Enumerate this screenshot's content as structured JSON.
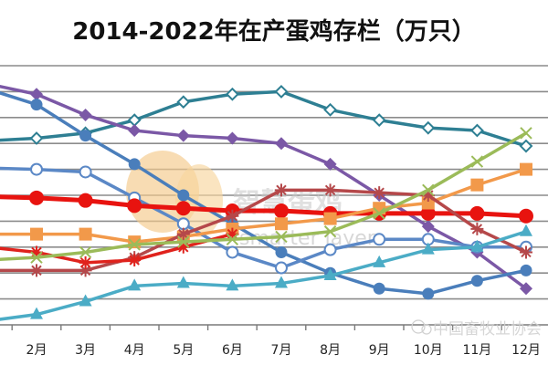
{
  "title": "2014-2022年在产蛋鸡存栏（万只）",
  "watermarks": {
    "brand_cn": "智慧蛋鸡",
    "brand_en": "smarter layer",
    "source": "中国畜牧业协会"
  },
  "chart_data": {
    "type": "line",
    "title": "2014-2022年在产蛋鸡存栏（万只）",
    "xlabel": "",
    "ylabel": "",
    "categories": [
      "2月",
      "3月",
      "4月",
      "5月",
      "6月",
      "7月",
      "8月",
      "9月",
      "10月",
      "11月",
      "12月"
    ],
    "y_units_note": "No y-axis tick labels visible; values are relative heights in gridline units (0 = x-axis, each gridline = 1)",
    "ylim": [
      0,
      10
    ],
    "grid": true,
    "legend": "none visible",
    "series": [
      {
        "name": "teal-open-diamond",
        "color": "#2e7f93",
        "marker": "open-diamond",
        "values": [
          7.2,
          7.4,
          7.9,
          8.6,
          8.9,
          9.0,
          8.3,
          7.9,
          7.6,
          7.5,
          6.9
        ]
      },
      {
        "name": "purple-diamond",
        "color": "#7b58a6",
        "marker": "filled-diamond",
        "values": [
          8.9,
          8.1,
          7.5,
          7.3,
          7.2,
          7.0,
          6.2,
          5.0,
          3.8,
          2.8,
          1.4
        ]
      },
      {
        "name": "blue-filled-circle",
        "color": "#4a7ebb",
        "marker": "filled-circle",
        "values": [
          8.5,
          7.3,
          6.2,
          5.0,
          3.9,
          2.8,
          2.0,
          1.4,
          1.2,
          1.7,
          2.1
        ]
      },
      {
        "name": "blue-open-circle",
        "color": "#5b88c6",
        "marker": "open-circle",
        "values": [
          6.0,
          5.9,
          4.9,
          3.9,
          2.8,
          2.2,
          2.9,
          3.3,
          3.3,
          3.0,
          3.0
        ]
      },
      {
        "name": "red-big-circle",
        "color": "#e8130f",
        "marker": "filled-circle",
        "values": [
          4.9,
          4.8,
          4.6,
          4.5,
          4.4,
          4.4,
          4.3,
          4.3,
          4.3,
          4.3,
          4.2
        ]
      },
      {
        "name": "orange-square",
        "color": "#f2994a",
        "marker": "filled-square",
        "values": [
          3.5,
          3.5,
          3.2,
          3.4,
          3.7,
          3.9,
          4.1,
          4.5,
          4.7,
          5.4,
          6.0
        ]
      },
      {
        "name": "darkred-asterisk",
        "color": "#b5484a",
        "marker": "asterisk",
        "values": [
          2.1,
          2.1,
          2.6,
          3.5,
          4.2,
          5.2,
          5.2,
          5.1,
          5.0,
          3.7,
          2.8
        ]
      },
      {
        "name": "red-asterisk",
        "color": "#e0221c",
        "marker": "asterisk",
        "values": [
          2.8,
          2.4,
          2.5,
          3.0,
          3.5,
          null,
          null,
          null,
          null,
          null,
          null
        ]
      },
      {
        "name": "green-x",
        "color": "#9bbb59",
        "marker": "x",
        "values": [
          2.6,
          2.8,
          3.1,
          3.2,
          3.3,
          3.4,
          3.6,
          4.3,
          5.2,
          6.3,
          7.4
        ]
      },
      {
        "name": "cyan-triangle",
        "color": "#4bacc6",
        "marker": "triangle",
        "values": [
          0.4,
          0.9,
          1.5,
          1.6,
          1.5,
          1.6,
          1.9,
          2.4,
          2.9,
          3.0,
          3.6
        ]
      }
    ]
  }
}
